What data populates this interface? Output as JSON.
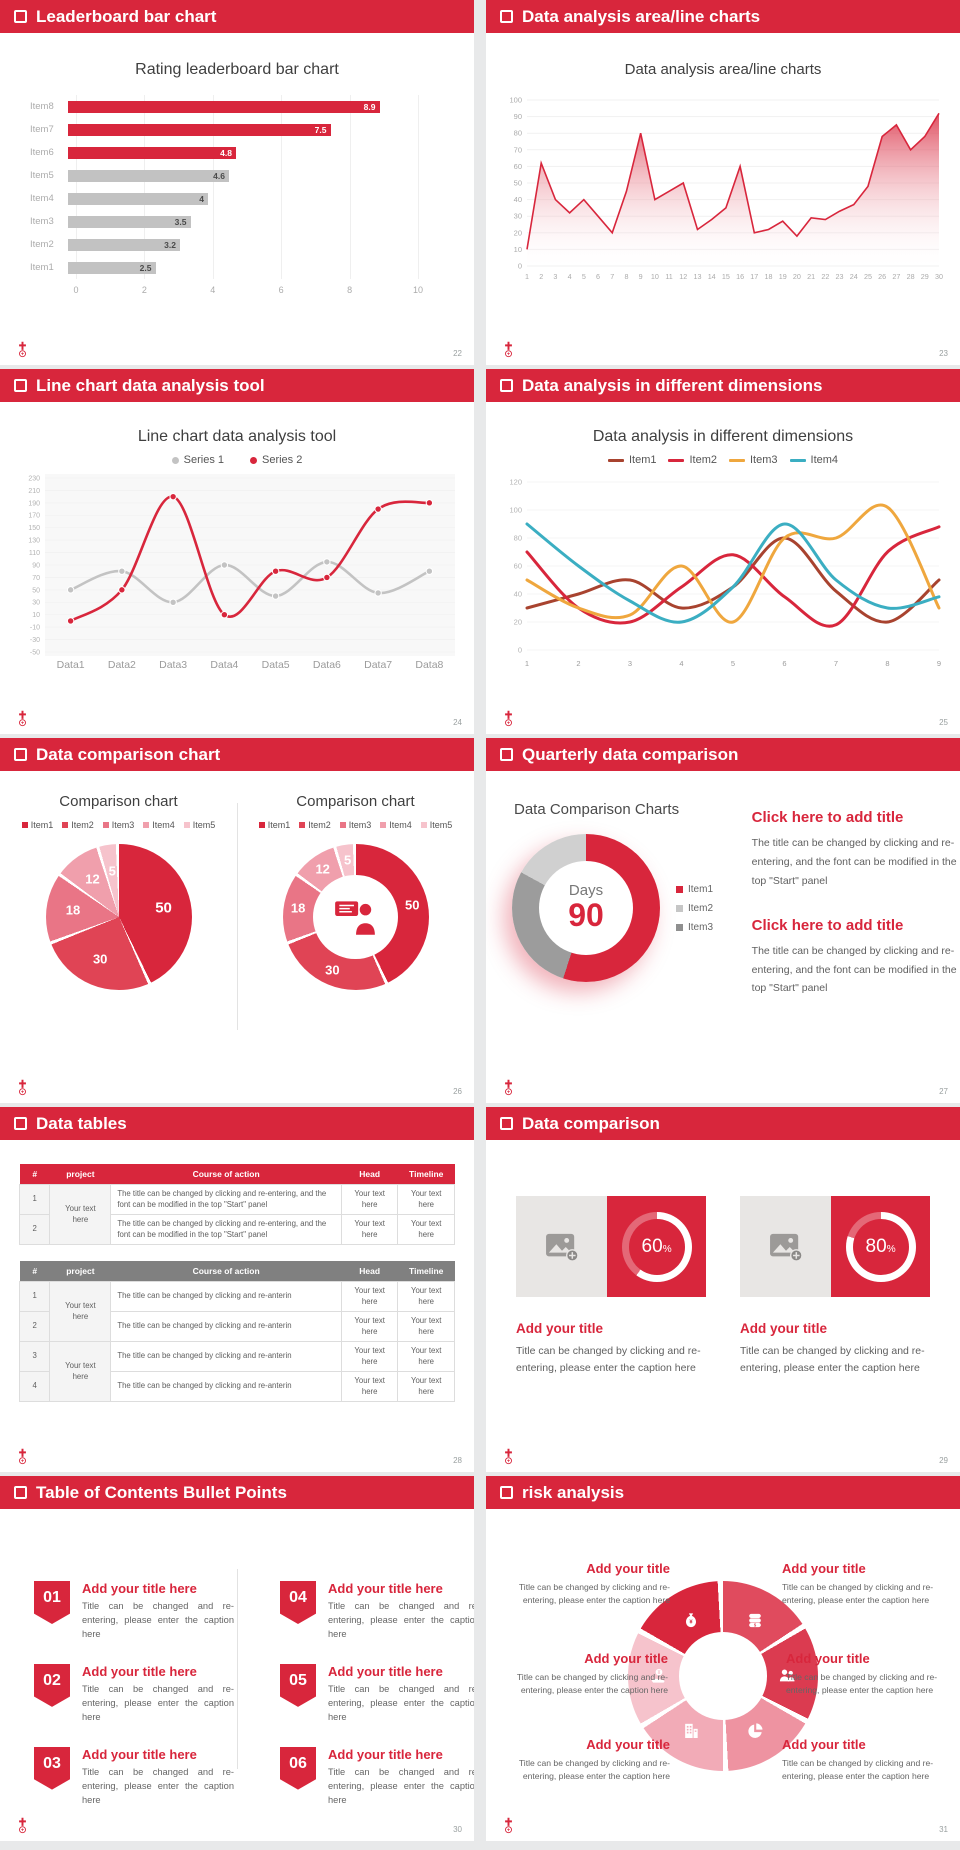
{
  "colors": {
    "header_red": "#D8263C",
    "bar_red": "#D8263C",
    "bar_gray": "#C2C2C2",
    "pie_shades": [
      "#D8263C",
      "#E04455",
      "#E97586",
      "#F09FAC",
      "#F6C3CC"
    ],
    "wheel_shades": [
      "#E04B5E",
      "#DB3B50",
      "#EE93A1",
      "#F2ABB7",
      "#F6C3CC",
      "#D8263C"
    ],
    "quarter_segments": [
      "#D8263C",
      "#9C9C9C",
      "#D0D0D0"
    ],
    "quarter_legend": [
      "#D8263C",
      "#C6C6C6",
      "#8F8F8F"
    ]
  },
  "slides": [
    {
      "header": "Leaderboard bar chart",
      "page": "22"
    },
    {
      "header": "Data analysis area/line charts",
      "page": "23"
    },
    {
      "header": "Line chart data analysis tool",
      "page": "24"
    },
    {
      "header": "Data analysis in different dimensions",
      "page": "25"
    },
    {
      "header": "Data comparison chart",
      "page": "26"
    },
    {
      "header": "Quarterly data comparison",
      "page": "27",
      "blocks": [
        {
          "title": "Click here to add title",
          "body": "The title can be changed by clicking and re-entering, and the font can be modified in the top \"Start\" panel"
        },
        {
          "title": "Click here to add title",
          "body": "The title can be changed by clicking and re-entering, and the font can be modified in the top \"Start\" panel"
        }
      ]
    },
    {
      "header": "Data tables",
      "page": "28",
      "tables": [
        {
          "style": "red",
          "columns": [
            "#",
            "project",
            "Course of action",
            "Head",
            "Timeline"
          ],
          "groups": [
            {
              "project": "Your text here",
              "rows": [
                {
                  "num": "1",
                  "course": "The title can be changed by clicking and re-entering, and the font can be modified in the top \"Start\" panel",
                  "head": "Your text here",
                  "timeline": "Your text here"
                },
                {
                  "num": "2",
                  "course": "The title can be changed by clicking and re-entering, and the font can be modified in the top \"Start\" panel",
                  "head": "Your text here",
                  "timeline": "Your text here"
                }
              ]
            }
          ]
        },
        {
          "style": "gry",
          "columns": [
            "#",
            "project",
            "Course of action",
            "Head",
            "Timeline"
          ],
          "groups": [
            {
              "project": "Your text here",
              "rows": [
                {
                  "num": "1",
                  "course": "The title can be changed by clicking and re-anterin",
                  "head": "Your text here",
                  "timeline": "Your text here"
                },
                {
                  "num": "2",
                  "course": "The title can be changed by clicking and re-anterin",
                  "head": "Your text here",
                  "timeline": "Your text here"
                }
              ]
            },
            {
              "project": "Your text here",
              "rows": [
                {
                  "num": "3",
                  "course": "The title can be changed by clicking and re-anterin",
                  "head": "Your text here",
                  "timeline": "Your text here"
                },
                {
                  "num": "4",
                  "course": "The title can be changed by clicking and re-anterin",
                  "head": "Your text here",
                  "timeline": "Your text here"
                }
              ]
            }
          ]
        }
      ]
    },
    {
      "header": "Data comparison",
      "page": "29",
      "cards": [
        {
          "title": "Add your title",
          "caption": "Title can be changed by clicking and re-entering, please enter the caption here"
        },
        {
          "title": "Add your title",
          "caption": "Title can be changed by clicking and re-entering, please enter the caption here"
        }
      ]
    },
    {
      "header": "Table of Contents Bullet Points",
      "page": "30",
      "items": [
        {
          "num": "01",
          "title": "Add your title here",
          "caption": "Title can be changed and re-entering, please enter the caption here"
        },
        {
          "num": "02",
          "title": "Add your title here",
          "caption": "Title can be changed and re-entering, please enter the caption here"
        },
        {
          "num": "03",
          "title": "Add your title here",
          "caption": "Title can be changed and re-entering, please enter the caption here"
        },
        {
          "num": "04",
          "title": "Add your title here",
          "caption": "Title can be changed and re-entering, please enter the caption here"
        },
        {
          "num": "05",
          "title": "Add your title here",
          "caption": "Title can be changed and re-entering, please enter the caption here"
        },
        {
          "num": "06",
          "title": "Add your title here",
          "caption": "Title can be changed and re-entering, please enter the caption here"
        }
      ]
    },
    {
      "header": "risk analysis",
      "page": "31",
      "items": [
        {
          "icon": "money-bag",
          "title": "Add your title",
          "caption": "Title can be changed by clicking and re-entering, please enter the caption here"
        },
        {
          "icon": "coin-stack",
          "title": "Add your title",
          "caption": "Title can be changed by clicking and re-entering, please enter the caption here"
        },
        {
          "icon": "people",
          "title": "Add your title",
          "caption": "Title can be changed by clicking and re-entering, please enter the caption here"
        },
        {
          "icon": "pie-chart",
          "title": "Add your title",
          "caption": "Title can be changed by clicking and re-entering, please enter the caption here"
        },
        {
          "icon": "building",
          "title": "Add your title",
          "caption": "Title can be changed by clicking and re-entering, please enter the caption here"
        },
        {
          "icon": "hand-coin",
          "title": "Add your title",
          "caption": "Title can be changed by clicking and re-entering, please enter the caption here"
        }
      ]
    }
  ],
  "chart_data": [
    {
      "type": "bar",
      "orientation": "horizontal",
      "title": "Rating leaderboard bar chart",
      "categories": [
        "Item8",
        "Item7",
        "Item6",
        "Item5",
        "Item4",
        "Item3",
        "Item2",
        "Item1"
      ],
      "values": [
        8.9,
        7.5,
        4.8,
        4.6,
        4,
        3.5,
        3.2,
        2.5
      ],
      "highlight_top": 3,
      "xlim": [
        0,
        10
      ],
      "xticks": [
        0,
        2,
        4,
        6,
        8,
        10
      ]
    },
    {
      "type": "area",
      "title": "Data analysis area/line charts",
      "x": [
        1,
        2,
        3,
        4,
        5,
        6,
        7,
        8,
        9,
        10,
        11,
        12,
        13,
        14,
        15,
        16,
        17,
        18,
        19,
        20,
        21,
        22,
        23,
        24,
        25,
        26,
        27,
        28,
        29,
        30
      ],
      "values": [
        10,
        62,
        40,
        32,
        40,
        30,
        20,
        45,
        80,
        40,
        45,
        50,
        22,
        28,
        35,
        60,
        20,
        22,
        27,
        18,
        29,
        28,
        33,
        37,
        48,
        78,
        85,
        70,
        78,
        92
      ],
      "ylim": [
        0,
        100
      ],
      "ytick_step": 10,
      "color": "#D8263C"
    },
    {
      "type": "line",
      "title": "Line chart data analysis tool",
      "categories": [
        "Data1",
        "Data2",
        "Data3",
        "Data4",
        "Data5",
        "Data6",
        "Data7",
        "Data8"
      ],
      "series": [
        {
          "name": "Series 1",
          "color": "#C3C3C3",
          "values": [
            50,
            80,
            30,
            90,
            40,
            95,
            45,
            80
          ]
        },
        {
          "name": "Series 2",
          "color": "#D8263C",
          "values": [
            0,
            50,
            200,
            10,
            80,
            70,
            180,
            190
          ]
        }
      ],
      "ylim": [
        -50,
        230
      ],
      "ytick_step": 20
    },
    {
      "type": "line",
      "title": "Data analysis in different dimensions",
      "x": [
        1,
        2,
        3,
        4,
        5,
        6,
        7,
        8,
        9
      ],
      "series": [
        {
          "name": "Item1",
          "color": "#A8432F",
          "values": [
            30,
            40,
            50,
            30,
            45,
            80,
            42,
            20,
            50
          ]
        },
        {
          "name": "Item2",
          "color": "#D8263C",
          "values": [
            70,
            30,
            20,
            45,
            68,
            38,
            18,
            70,
            88
          ]
        },
        {
          "name": "Item3",
          "color": "#EFA73E",
          "values": [
            50,
            30,
            25,
            60,
            20,
            80,
            80,
            102,
            30
          ]
        },
        {
          "name": "Item4",
          "color": "#3BAEC2",
          "values": [
            90,
            60,
            35,
            20,
            45,
            90,
            50,
            30,
            38
          ]
        }
      ],
      "ylim": [
        0,
        120
      ],
      "ytick_step": 20
    },
    {
      "type": "pie",
      "titles": [
        "Comparison chart",
        "Comparison chart"
      ],
      "legend": [
        "Item1",
        "Item2",
        "Item3",
        "Item4",
        "Item5"
      ],
      "values": [
        50,
        30,
        18,
        12,
        5
      ],
      "variants": [
        "pie",
        "donut"
      ]
    },
    {
      "type": "donut",
      "title": "Data Comparison Charts",
      "center_label": "Days",
      "center_value": "90",
      "legend": [
        "Item1",
        "Item2",
        "Item3"
      ],
      "segments": [
        55,
        28,
        17
      ]
    },
    {
      "type": "progress-ring",
      "values": [
        60,
        80
      ],
      "unit": "%"
    }
  ]
}
